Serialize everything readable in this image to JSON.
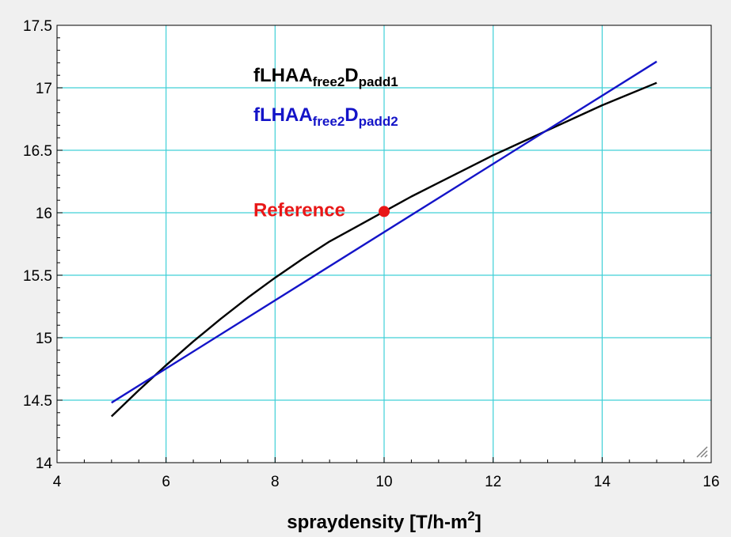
{
  "chart_data": {
    "type": "line",
    "title": "",
    "xlabel": {
      "main": "spraydensity  [T/h-m",
      "sup": "2",
      "end": "]"
    },
    "ylabel": "",
    "xlim": [
      4,
      16
    ],
    "ylim": [
      14,
      17.5
    ],
    "xticks": [
      4,
      6,
      8,
      10,
      12,
      14,
      16
    ],
    "yticks": [
      14,
      14.5,
      15,
      15.5,
      16,
      16.5,
      17,
      17.5
    ],
    "xtick_labels": [
      "4",
      "6",
      "8",
      "10",
      "12",
      "14",
      "16"
    ],
    "ytick_labels": [
      "14",
      "14.5",
      "15",
      "15.5",
      "16",
      "16.5",
      "17",
      "17.5"
    ],
    "grid": true,
    "grid_color": "#40d0d8",
    "legend_placement": "top-center",
    "series": [
      {
        "name": "fLHAAfree2Dpadd1",
        "label_parts": {
          "base1": "fLHAA",
          "sub1": "free2",
          "base2": "D",
          "sub2": "padd1"
        },
        "color": "#000000",
        "x": [
          5,
          5.5,
          6,
          6.5,
          7,
          7.5,
          8,
          8.5,
          9,
          9.5,
          10,
          10.5,
          11,
          11.5,
          12,
          12.5,
          13,
          13.5,
          14,
          14.5,
          15
        ],
        "y": [
          14.37,
          14.58,
          14.78,
          14.97,
          15.15,
          15.32,
          15.48,
          15.63,
          15.77,
          15.89,
          16.01,
          16.13,
          16.24,
          16.35,
          16.46,
          16.56,
          16.66,
          16.76,
          16.86,
          16.95,
          17.04
        ]
      },
      {
        "name": "fLHAAfree2Dpadd2",
        "label_parts": {
          "base1": "fLHAA",
          "sub1": "free2",
          "base2": "D",
          "sub2": "padd2"
        },
        "color": "#1414c8",
        "x": [
          5,
          15
        ],
        "y": [
          14.48,
          17.21
        ]
      }
    ],
    "annotations": [
      {
        "text": "Reference",
        "x": 10,
        "y": 16.01,
        "color": "#e81818"
      }
    ]
  }
}
